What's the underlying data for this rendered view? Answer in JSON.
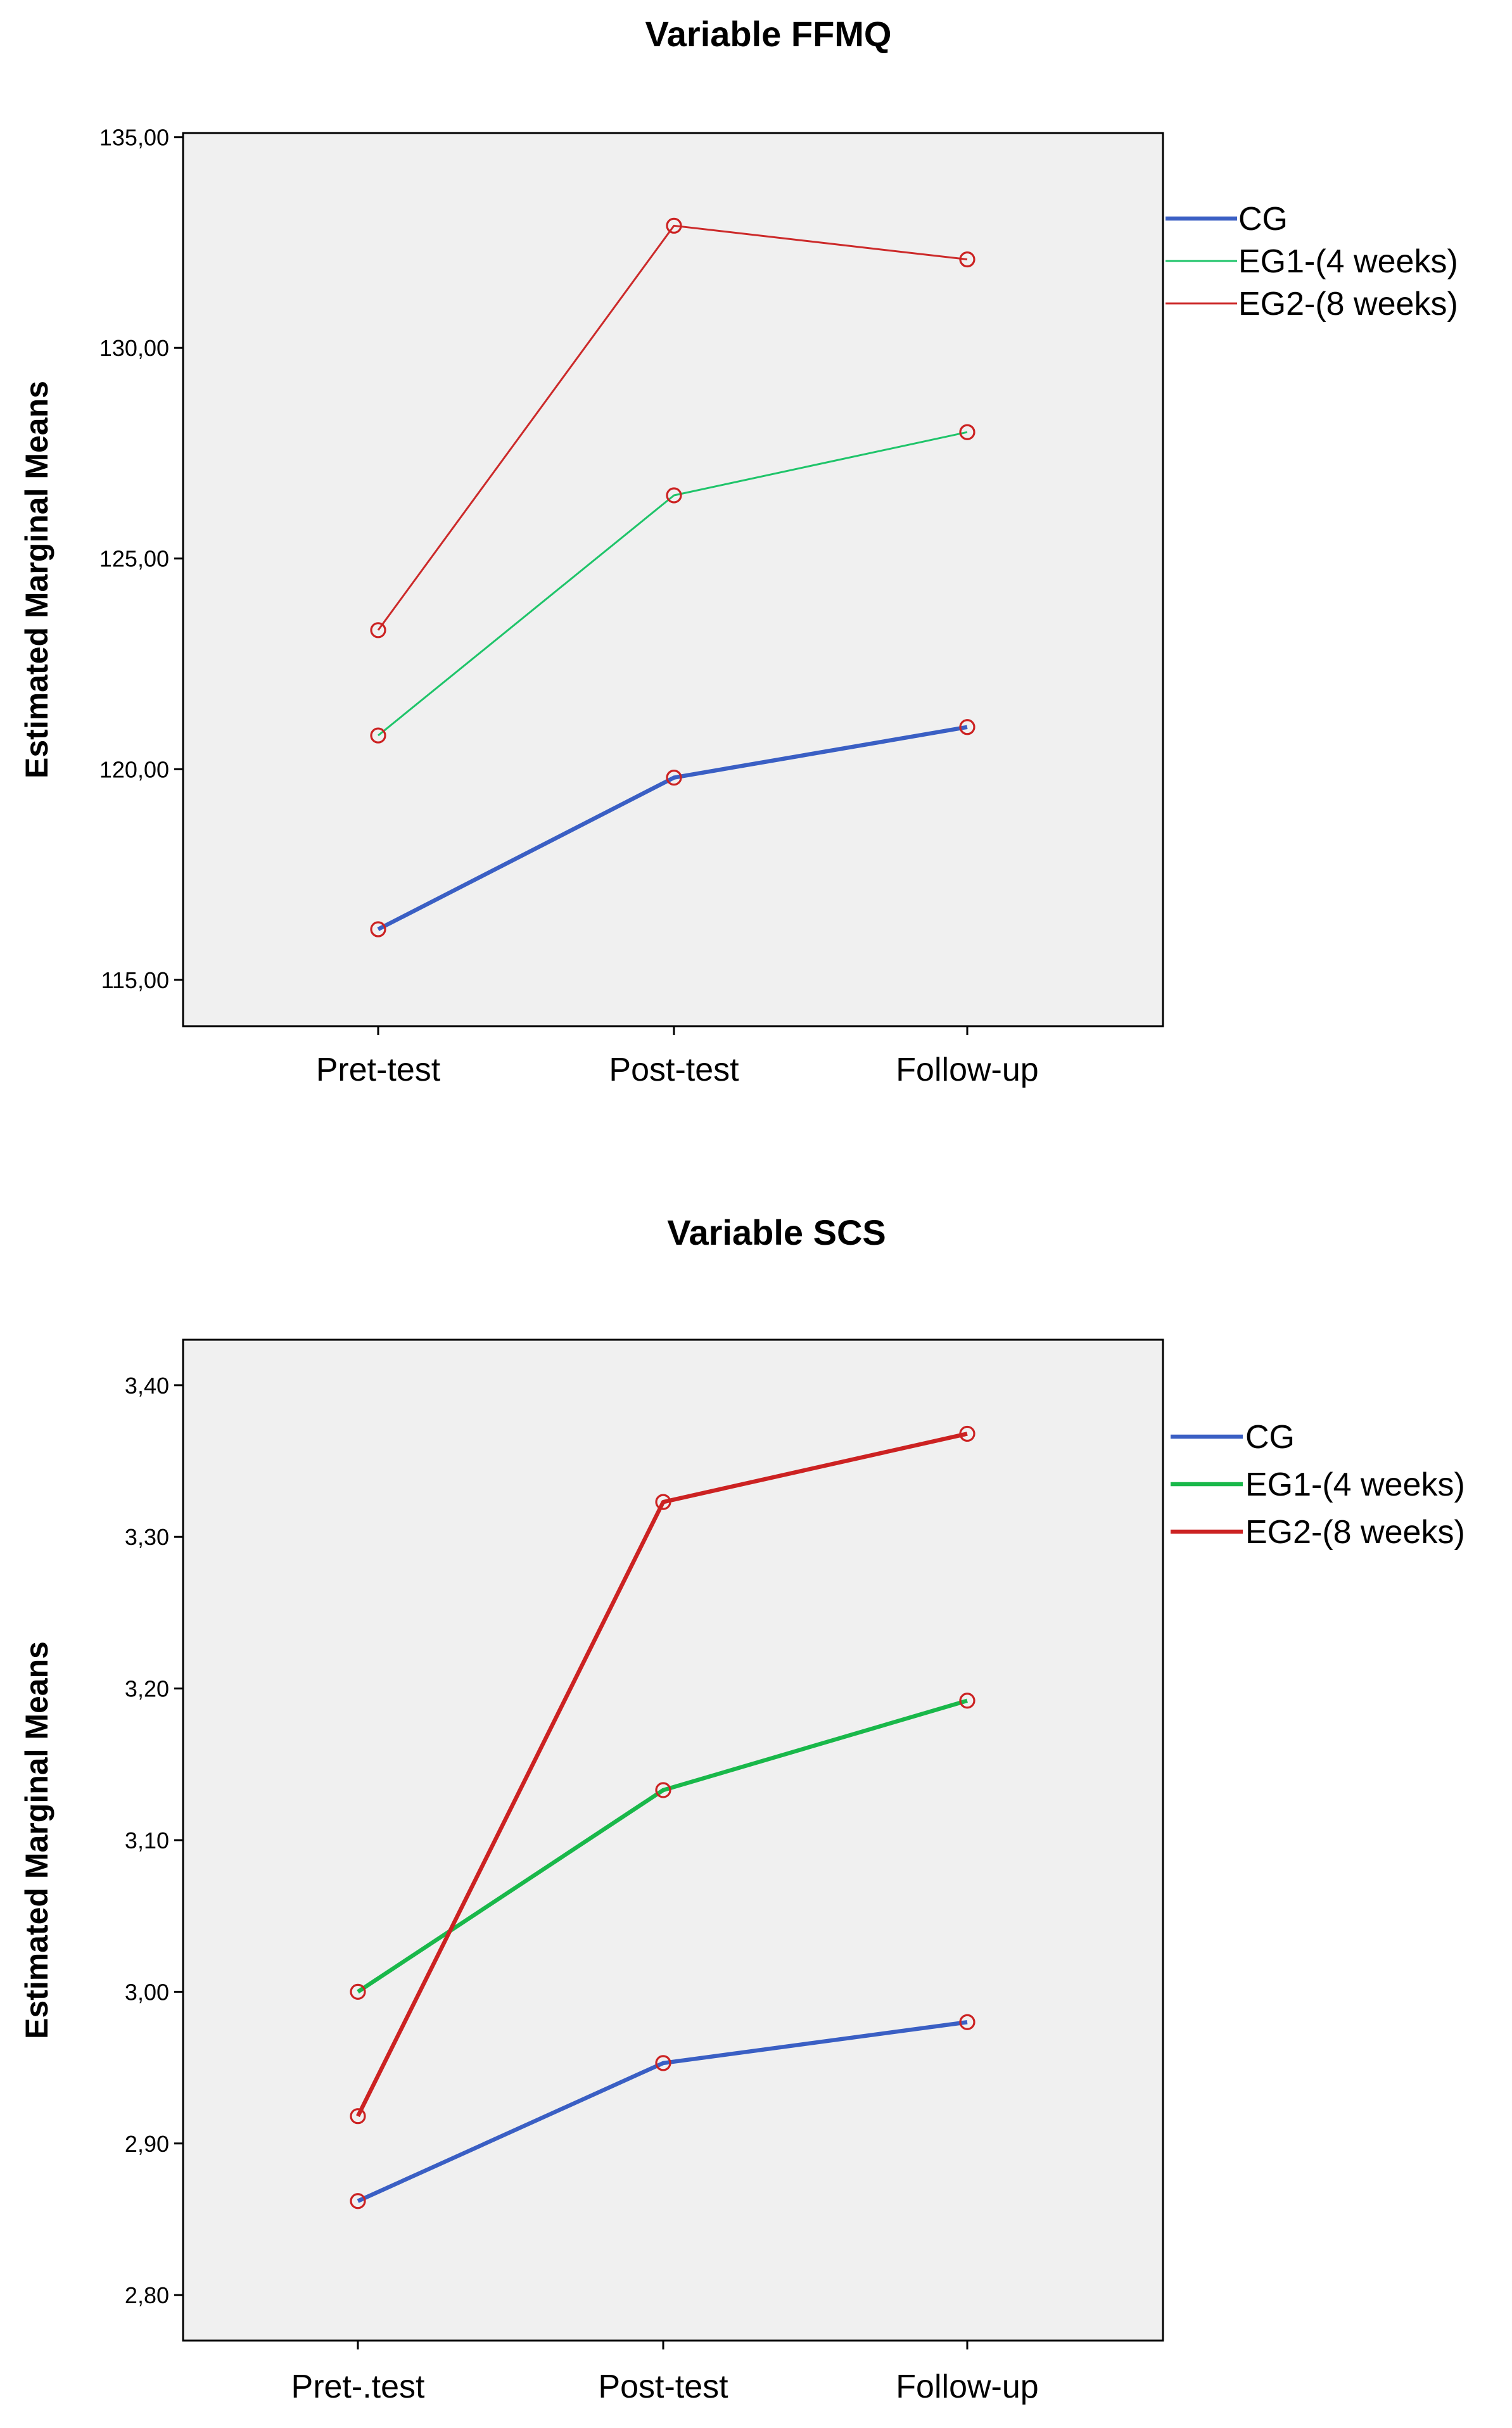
{
  "chart_data": [
    {
      "type": "line",
      "title": "Variable FFMQ",
      "xlabel": "",
      "ylabel": "Estimated Marginal Means",
      "categories": [
        "Pret-test",
        "Post-test",
        "Follow-up"
      ],
      "ylim": [
        113.9,
        135.1
      ],
      "yticks": [
        115,
        120,
        125,
        130,
        135
      ],
      "ytick_labels": [
        "115,00",
        "120,00",
        "125,00",
        "130,00",
        "135,00"
      ],
      "grid": false,
      "legend_position": "right",
      "marker": "circle",
      "marker_color": "#cc2222",
      "series": [
        {
          "name": "CG",
          "values": [
            116.2,
            119.8,
            121.0
          ],
          "color": "#3a5fc4",
          "weight": "thick"
        },
        {
          "name": "EG1-(4 weeks)",
          "values": [
            120.8,
            126.5,
            128.0
          ],
          "color": "#1fc46a",
          "weight": "thin"
        },
        {
          "name": "EG2-(8 weeks)",
          "values": [
            123.3,
            132.9,
            132.1
          ],
          "color": "#cc2a2a",
          "weight": "thin"
        }
      ]
    },
    {
      "type": "line",
      "title": "Variable SCS",
      "xlabel": "",
      "ylabel": "Estimated Marginal Means",
      "categories": [
        "Pret-.test",
        "Post-test",
        "Follow-up"
      ],
      "ylim": [
        2.77,
        3.43
      ],
      "yticks": [
        2.8,
        2.9,
        3.0,
        3.1,
        3.2,
        3.3,
        3.4
      ],
      "ytick_labels": [
        "2,80",
        "2,90",
        "3,00",
        "3,10",
        "3,20",
        "3,30",
        "3,40"
      ],
      "grid": false,
      "legend_position": "right",
      "marker": "circle",
      "marker_color": "#cc2222",
      "series": [
        {
          "name": "CG",
          "values": [
            2.862,
            2.953,
            2.98
          ],
          "color": "#3a5fc4",
          "weight": "thick"
        },
        {
          "name": "EG1-(4 weeks)",
          "values": [
            3.0,
            3.133,
            3.192
          ],
          "color": "#19b84a",
          "weight": "thick"
        },
        {
          "name": "EG2-(8 weeks)",
          "values": [
            2.918,
            3.323,
            3.368
          ],
          "color": "#cc2222",
          "weight": "thick"
        }
      ]
    }
  ]
}
